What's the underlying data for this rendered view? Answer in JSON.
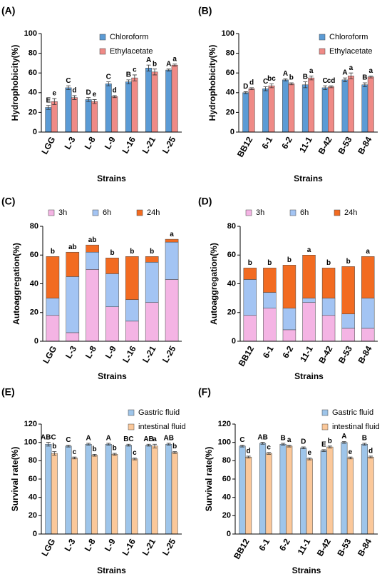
{
  "chart_data": [
    {
      "type": "bar",
      "title": "(A)",
      "ylabel": "Hydrophobicity(%)",
      "xlabel": "Strains",
      "categories": [
        "LGG",
        "L-3",
        "L-8",
        "L-9",
        "L-16",
        "L-21",
        "L-25"
      ],
      "series": [
        {
          "name": "Chloroform",
          "color": "#5b9bd5",
          "values": [
            25,
            45,
            33,
            49,
            51,
            65,
            63
          ],
          "errors": [
            2,
            2,
            2,
            2,
            2,
            3,
            1
          ],
          "letters": [
            "E",
            "C",
            "D",
            "C",
            "B",
            "A",
            "A"
          ]
        },
        {
          "name": "Ethylacetate",
          "color": "#ef8a86",
          "values": [
            31,
            35,
            31,
            36,
            55,
            61,
            68
          ],
          "errors": [
            3,
            2,
            2,
            1,
            3,
            3,
            1
          ],
          "letters": [
            "e",
            "d",
            "e",
            "d",
            "c",
            "b",
            "a"
          ]
        }
      ],
      "ylim": [
        0,
        100
      ],
      "yticks": [
        0,
        20,
        40,
        60,
        80,
        100
      ],
      "legend": "top-left"
    },
    {
      "type": "bar",
      "title": "(B)",
      "ylabel": "Hydrophobicity(%)",
      "xlabel": "Strains",
      "categories": [
        "BB12",
        "6-1",
        "6-2",
        "11-1",
        "B-42",
        "B-53",
        "B-84"
      ],
      "series": [
        {
          "name": "Chloroform",
          "color": "#5b9bd5",
          "values": [
            40,
            44,
            53,
            48,
            45,
            53,
            48
          ],
          "errors": [
            1,
            2,
            1,
            3,
            2,
            2,
            2
          ],
          "letters": [
            "D",
            "C",
            "A",
            "B",
            "C",
            "A",
            "B"
          ]
        },
        {
          "name": "Ethylacetate",
          "color": "#ef8a86",
          "values": [
            44,
            47,
            49,
            55,
            46,
            57,
            56
          ],
          "errors": [
            1,
            2,
            1,
            2,
            1,
            3,
            1
          ],
          "letters": [
            "d",
            "bc",
            "b",
            "a",
            "cd",
            "a",
            "a"
          ]
        }
      ],
      "ylim": [
        0,
        100
      ],
      "yticks": [
        0,
        20,
        40,
        60,
        80,
        100
      ],
      "legend": "top-right"
    },
    {
      "type": "stacked_bar",
      "title": "(C)",
      "ylabel": "Autoaggregation(%)",
      "xlabel": "Strains",
      "categories": [
        "LGG",
        "L-3",
        "L-8",
        "L-9",
        "L-16",
        "L-21",
        "L-25"
      ],
      "series": [
        {
          "name": "3h",
          "color": "#f4b4e4",
          "values": [
            18,
            6,
            50,
            24,
            14,
            27,
            43
          ]
        },
        {
          "name": "6h",
          "color": "#a3c4f3",
          "values": [
            12,
            39,
            12,
            23,
            15,
            28,
            26
          ]
        },
        {
          "name": "24h",
          "color": "#f26b21",
          "values": [
            29,
            17,
            5,
            11,
            30,
            4,
            2
          ]
        }
      ],
      "top_labels": [
        "b",
        "ab",
        "ab",
        "b",
        "b",
        "b",
        "a"
      ],
      "ylim": [
        0,
        80
      ],
      "yticks": [
        0,
        20,
        40,
        60,
        80
      ],
      "legend": "top"
    },
    {
      "type": "stacked_bar",
      "title": "(D)",
      "ylabel": "Autoaggregation(%)",
      "xlabel": "Strains",
      "categories": [
        "BB12",
        "6-1",
        "6-2",
        "11-1",
        "B-42",
        "B-53",
        "B-84"
      ],
      "series": [
        {
          "name": "3h",
          "color": "#f4b4e4",
          "values": [
            18,
            23,
            8,
            27,
            18,
            9,
            9
          ]
        },
        {
          "name": "6h",
          "color": "#a3c4f3",
          "values": [
            25,
            11,
            15,
            3,
            12,
            10,
            21
          ]
        },
        {
          "name": "24h",
          "color": "#f26b21",
          "values": [
            8,
            17,
            30,
            30,
            21,
            33,
            29
          ]
        }
      ],
      "top_labels": [
        "b",
        "b",
        "b",
        "a",
        "b",
        "b",
        "a"
      ],
      "ylim": [
        0,
        80
      ],
      "yticks": [
        0,
        20,
        40,
        60,
        80
      ],
      "legend": "top"
    },
    {
      "type": "bar",
      "title": "(E)",
      "ylabel": "Survival rate(%)",
      "xlabel": "Strains",
      "categories": [
        "LGG",
        "L-3",
        "L-8",
        "L-9",
        "L-16",
        "L-21",
        "L-25"
      ],
      "series": [
        {
          "name": "Gastric fluid",
          "color": "#9ec5ea",
          "values": [
            98,
            96,
            98,
            98,
            97,
            97,
            98
          ],
          "errors": [
            2,
            1,
            1,
            1,
            1,
            1,
            1
          ],
          "letters": [
            "ABC",
            "C",
            "A",
            "A",
            "BC",
            "AB",
            "AB"
          ]
        },
        {
          "name": "intestinal fluid",
          "color": "#fbc89a",
          "values": [
            88,
            83,
            86,
            87,
            82,
            96,
            89
          ],
          "errors": [
            2,
            1,
            1,
            1,
            1,
            2,
            1
          ],
          "letters": [
            "b",
            "c",
            "b",
            "b",
            "c",
            "a",
            "b"
          ]
        }
      ],
      "ylim": [
        0,
        120
      ],
      "yticks": [
        0,
        20,
        40,
        60,
        80,
        100,
        120
      ],
      "legend": "top-right"
    },
    {
      "type": "bar",
      "title": "(F)",
      "ylabel": "Survival rate(%)",
      "xlabel": "Strains",
      "categories": [
        "BB12",
        "6-1",
        "6-2",
        "11-1",
        "B-42",
        "B-53",
        "B-84"
      ],
      "series": [
        {
          "name": "Gastric fluid",
          "color": "#9ec5ea",
          "values": [
            96,
            99,
            98,
            94,
            91,
            100,
            98
          ],
          "errors": [
            1,
            1,
            1,
            1,
            1,
            1,
            1
          ],
          "letters": [
            "C",
            "AB",
            "B",
            "D",
            "E",
            "A",
            "B"
          ]
        },
        {
          "name": "intestinal fluid",
          "color": "#fbc89a",
          "values": [
            84,
            88,
            96,
            82,
            95,
            83,
            84
          ],
          "errors": [
            1,
            1,
            1,
            1,
            1,
            1,
            1
          ],
          "letters": [
            "d",
            "c",
            "a",
            "e",
            "b",
            "e",
            "d"
          ]
        }
      ],
      "ylim": [
        0,
        120
      ],
      "yticks": [
        0,
        20,
        40,
        60,
        80,
        100,
        120
      ],
      "legend": "top-right"
    }
  ]
}
